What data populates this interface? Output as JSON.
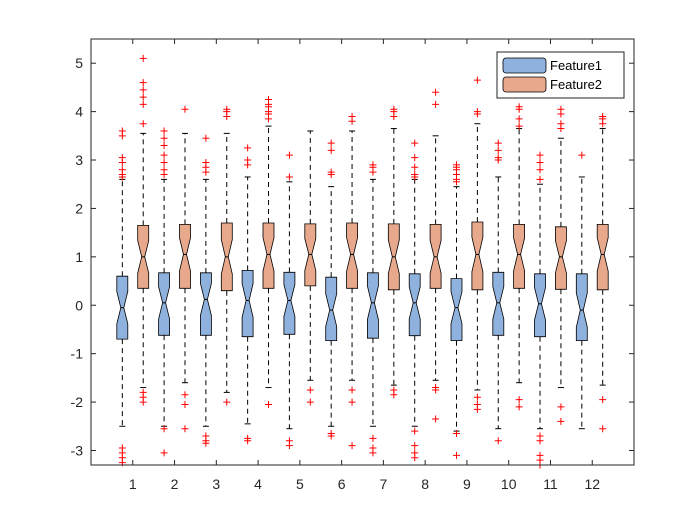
{
  "chart_data": {
    "type": "box",
    "title": "",
    "xlabel": "",
    "ylabel": "",
    "categories": [
      "1",
      "2",
      "3",
      "4",
      "5",
      "6",
      "7",
      "8",
      "9",
      "10",
      "11",
      "12"
    ],
    "xlim": [
      0,
      13
    ],
    "ylim": [
      -3.3,
      5.5
    ],
    "yticks": [
      -3,
      -2,
      -1,
      0,
      1,
      2,
      3,
      4,
      5
    ],
    "ytick_labels": [
      "-3",
      "-2",
      "-1",
      "0",
      "1",
      "2",
      "3",
      "4",
      "5"
    ],
    "notched": true,
    "legend_position": "top-right",
    "colors": {
      "Feature1": "#8eb1dd",
      "Feature2": "#e7a88b",
      "outlier": "#ff0000",
      "whisker": "#000000",
      "median": "#000000"
    },
    "series": [
      {
        "name": "Feature1",
        "boxes": [
          {
            "q1": -0.7,
            "median": -0.05,
            "q3": 0.6,
            "whisker_low": -2.5,
            "whisker_high": 2.6,
            "outliers": [
              2.65,
              2.7,
              2.8,
              2.95,
              3.05,
              3.5,
              3.6,
              -2.95,
              -3.05,
              -3.15,
              -3.25
            ]
          },
          {
            "q1": -0.62,
            "median": 0.05,
            "q3": 0.67,
            "whisker_low": -2.5,
            "whisker_high": 2.6,
            "outliers": [
              2.7,
              2.8,
              2.95,
              3.1,
              3.3,
              3.45,
              3.6,
              -2.55,
              -3.05
            ]
          },
          {
            "q1": -0.62,
            "median": 0.12,
            "q3": 0.67,
            "whisker_low": -2.5,
            "whisker_high": 2.6,
            "outliers": [
              2.75,
              2.85,
              2.95,
              3.45,
              -2.7,
              -2.8,
              -2.85
            ]
          },
          {
            "q1": -0.65,
            "median": 0.1,
            "q3": 0.72,
            "whisker_low": -2.45,
            "whisker_high": 2.65,
            "outliers": [
              2.9,
              3.0,
              3.25,
              -2.75,
              -2.8
            ]
          },
          {
            "q1": -0.6,
            "median": 0.1,
            "q3": 0.68,
            "whisker_low": -2.55,
            "whisker_high": 2.55,
            "outliers": [
              2.65,
              3.1,
              -2.8,
              -2.9
            ]
          },
          {
            "q1": -0.73,
            "median": -0.1,
            "q3": 0.58,
            "whisker_low": -2.5,
            "whisker_high": 2.45,
            "outliers": [
              2.7,
              2.75,
              3.2,
              3.35,
              -2.65,
              -2.7
            ]
          },
          {
            "q1": -0.68,
            "median": 0.05,
            "q3": 0.67,
            "whisker_low": -2.5,
            "whisker_high": 2.6,
            "outliers": [
              2.75,
              2.85,
              2.9,
              -2.75,
              -2.95,
              -3.05
            ]
          },
          {
            "q1": -0.63,
            "median": 0.05,
            "q3": 0.65,
            "whisker_low": -2.5,
            "whisker_high": 2.6,
            "outliers": [
              2.65,
              2.7,
              2.85,
              3.05,
              3.35,
              -2.6,
              -2.9,
              -3.05,
              -3.15
            ]
          },
          {
            "q1": -0.73,
            "median": -0.05,
            "q3": 0.55,
            "whisker_low": -2.6,
            "whisker_high": 2.45,
            "outliers": [
              2.55,
              2.6,
              2.7,
              2.8,
              2.85,
              2.9,
              -2.65,
              -3.1
            ]
          },
          {
            "q1": -0.62,
            "median": 0.05,
            "q3": 0.68,
            "whisker_low": -2.55,
            "whisker_high": 2.65,
            "outliers": [
              3.0,
              3.05,
              3.2,
              3.35,
              -2.8
            ]
          },
          {
            "q1": -0.65,
            "median": 0.03,
            "q3": 0.65,
            "whisker_low": -2.55,
            "whisker_high": 2.5,
            "outliers": [
              2.6,
              2.8,
              2.95,
              3.1,
              -2.7,
              -2.8,
              -3.1,
              -3.2,
              -3.3
            ]
          },
          {
            "q1": -0.73,
            "median": -0.1,
            "q3": 0.65,
            "whisker_low": -2.55,
            "whisker_high": 2.65,
            "outliers": [
              3.1
            ]
          }
        ]
      },
      {
        "name": "Feature2",
        "boxes": [
          {
            "q1": 0.35,
            "median": 1.0,
            "q3": 1.65,
            "whisker_low": -1.7,
            "whisker_high": 3.55,
            "outliers": [
              3.75,
              4.15,
              4.3,
              4.45,
              4.6,
              5.1,
              -1.8,
              -1.9,
              -2.0
            ]
          },
          {
            "q1": 0.35,
            "median": 1.05,
            "q3": 1.67,
            "whisker_low": -1.6,
            "whisker_high": 3.55,
            "outliers": [
              4.05,
              -1.85,
              -2.05,
              -2.55
            ]
          },
          {
            "q1": 0.3,
            "median": 1.0,
            "q3": 1.7,
            "whisker_low": -1.8,
            "whisker_high": 3.55,
            "outliers": [
              3.9,
              4.0,
              4.05,
              -2.0
            ]
          },
          {
            "q1": 0.35,
            "median": 1.05,
            "q3": 1.7,
            "whisker_low": -1.7,
            "whisker_high": 3.7,
            "outliers": [
              3.85,
              3.95,
              4.0,
              4.1,
              4.15,
              4.25,
              -2.05
            ]
          },
          {
            "q1": 0.4,
            "median": 1.05,
            "q3": 1.68,
            "whisker_low": -1.55,
            "whisker_high": 3.6,
            "outliers": [
              -1.75,
              -2.0
            ]
          },
          {
            "q1": 0.35,
            "median": 1.05,
            "q3": 1.7,
            "whisker_low": -1.55,
            "whisker_high": 3.6,
            "outliers": [
              3.8,
              3.9,
              -1.75,
              -2.0,
              -2.9
            ]
          },
          {
            "q1": 0.32,
            "median": 1.0,
            "q3": 1.68,
            "whisker_low": -1.65,
            "whisker_high": 3.65,
            "outliers": [
              3.9,
              4.0,
              4.05,
              -1.75,
              -1.85
            ]
          },
          {
            "q1": 0.35,
            "median": 1.0,
            "q3": 1.67,
            "whisker_low": -1.55,
            "whisker_high": 3.5,
            "outliers": [
              4.15,
              4.4,
              -1.7,
              -1.75,
              -2.35
            ]
          },
          {
            "q1": 0.32,
            "median": 1.05,
            "q3": 1.72,
            "whisker_low": -1.75,
            "whisker_high": 3.75,
            "outliers": [
              3.95,
              4.0,
              4.65,
              -1.9,
              -2.05,
              -2.15
            ]
          },
          {
            "q1": 0.35,
            "median": 1.05,
            "q3": 1.67,
            "whisker_low": -1.6,
            "whisker_high": 3.65,
            "outliers": [
              3.7,
              3.85,
              4.05,
              4.1,
              -1.95,
              -2.1
            ]
          },
          {
            "q1": 0.33,
            "median": 1.0,
            "q3": 1.62,
            "whisker_low": -1.7,
            "whisker_high": 3.45,
            "outliers": [
              3.65,
              3.75,
              3.95,
              4.05,
              -2.1,
              -2.4
            ]
          },
          {
            "q1": 0.32,
            "median": 1.05,
            "q3": 1.67,
            "whisker_low": -1.65,
            "whisker_high": 3.65,
            "outliers": [
              3.75,
              3.85,
              3.9,
              -1.95,
              -2.55
            ]
          }
        ]
      }
    ]
  }
}
